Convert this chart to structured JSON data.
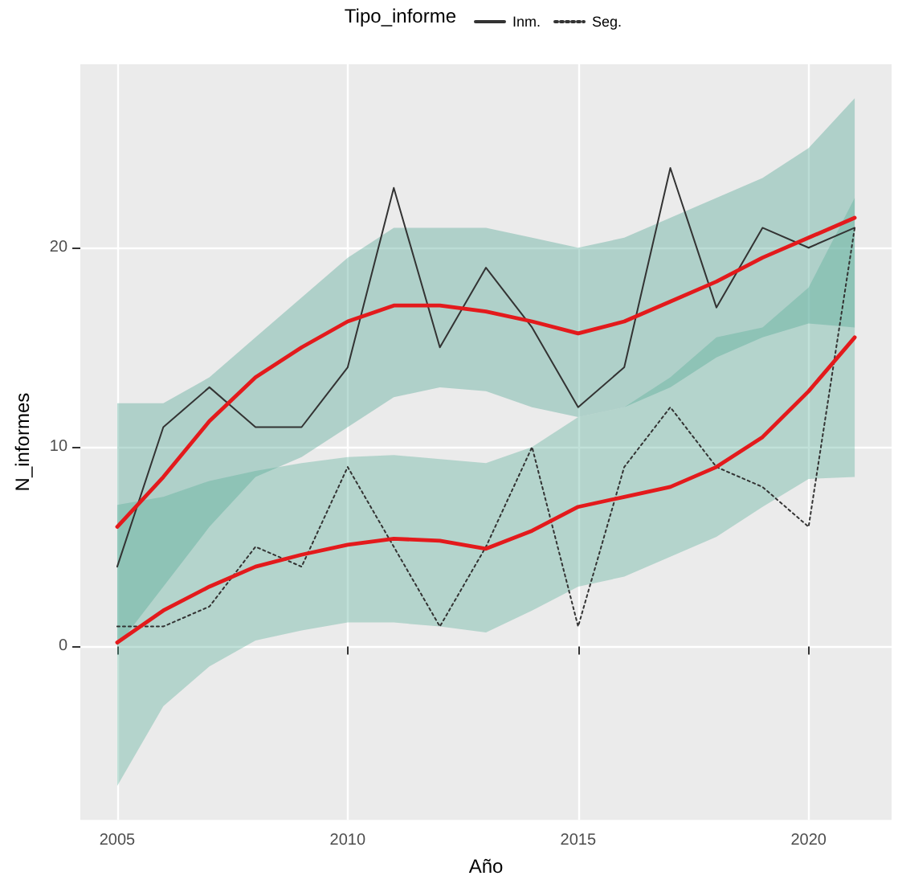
{
  "chart_data": {
    "type": "line",
    "xlabel": "Año",
    "ylabel": "N_informes",
    "legend_title": "Tipo_informe",
    "legend": "top",
    "x": [
      2005,
      2006,
      2007,
      2008,
      2009,
      2010,
      2011,
      2012,
      2013,
      2014,
      2015,
      2016,
      2017,
      2018,
      2019,
      2020,
      2021
    ],
    "series": [
      {
        "name": "Inm.",
        "color": "#333333",
        "line_style": "solid",
        "values": [
          4,
          11,
          13,
          11,
          11,
          14,
          23,
          15,
          19,
          16,
          12,
          14,
          24,
          17,
          21,
          20,
          21
        ]
      },
      {
        "name": "Seg.",
        "color": "#333333",
        "line_style": "dotted",
        "values": [
          1,
          1,
          2,
          5,
          4,
          9,
          5,
          1,
          5,
          10,
          1,
          9,
          12,
          9,
          8,
          6,
          21
        ]
      },
      {
        "color": "#e31a1c",
        "line_style": "solid",
        "values": [
          6,
          8.5,
          11.3,
          13.5,
          15,
          16.3,
          17.1,
          17.1,
          16.8,
          16.3,
          15.7,
          16.3,
          17.3,
          18.3,
          19.5,
          20.5,
          21.5
        ],
        "lower": [
          0,
          3,
          6,
          8.5,
          9.5,
          11,
          12.5,
          13,
          12.8,
          12,
          11.5,
          12,
          13,
          14.5,
          15.5,
          16.2,
          16
        ],
        "upper": [
          12.2,
          12.2,
          13.5,
          15.5,
          17.5,
          19.5,
          21,
          21,
          21,
          20.5,
          20,
          20.5,
          21.5,
          22.5,
          23.5,
          25,
          27.5
        ]
      },
      {
        "color": "#e31a1c",
        "line_style": "solid",
        "values": [
          0.2,
          1.8,
          3,
          4,
          4.6,
          5.1,
          5.4,
          5.3,
          4.9,
          5.8,
          7,
          7.5,
          8,
          9,
          10.5,
          12.8,
          15.5
        ],
        "lower": [
          -7,
          -3,
          -1,
          0.3,
          0.8,
          1.2,
          1.2,
          1,
          0.7,
          1.8,
          3,
          3.5,
          4.5,
          5.5,
          7,
          8.4,
          8.5
        ],
        "upper": [
          7.1,
          7.5,
          8.3,
          8.8,
          9.2,
          9.5,
          9.6,
          9.4,
          9.2,
          10,
          11.5,
          12,
          13.5,
          15.5,
          16,
          18,
          22.5
        ]
      }
    ],
    "xlim": [
      2004.2,
      2021.8
    ],
    "xticks": [
      2005,
      2010,
      2015,
      2020
    ],
    "ylim": [
      -8.7,
      29.2
    ],
    "yticks": [
      0,
      10,
      20
    ],
    "grid": true,
    "marker": "none"
  }
}
